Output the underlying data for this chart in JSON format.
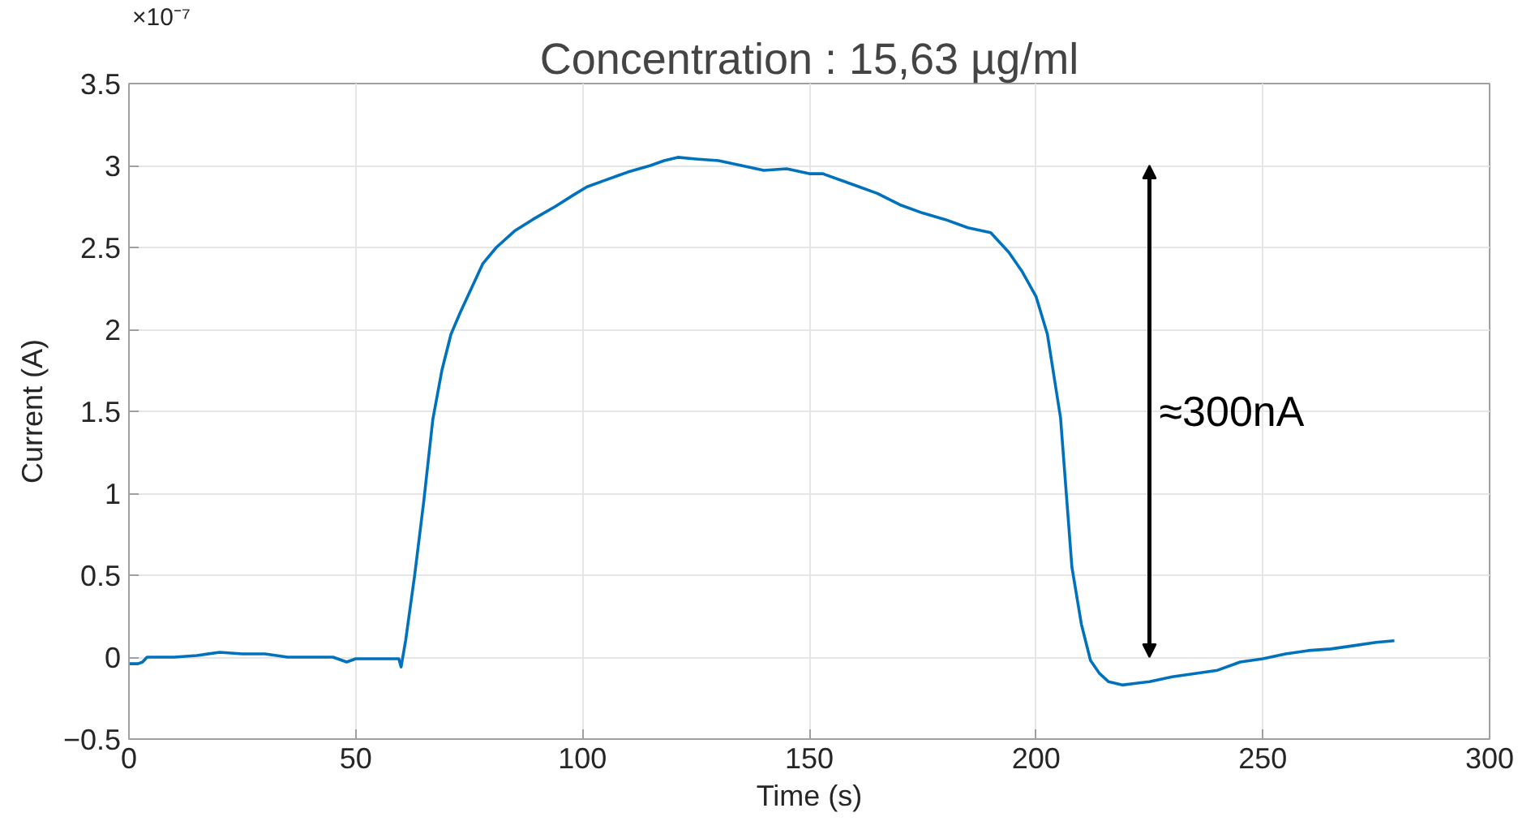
{
  "chart_data": {
    "type": "line",
    "title": "Concentration : 15,63 µg/ml",
    "xlabel": "Time (s)",
    "ylabel": "Current (A)",
    "xlim": [
      0,
      300
    ],
    "xticks": [
      0,
      50,
      100,
      150,
      200,
      250,
      300
    ],
    "ylim": [
      -0.5,
      3.5
    ],
    "yticks": [
      -0.5,
      0,
      0.5,
      1,
      1.5,
      2,
      2.5,
      3,
      3.5
    ],
    "grid": true,
    "marker": "none",
    "line_style": "solid",
    "annotations": [
      "×10⁻⁷",
      "≈300nA"
    ],
    "series": [
      {
        "color": "#0072bd",
        "x": [
          0,
          2,
          3,
          4,
          10,
          15,
          20,
          25,
          30,
          35,
          40,
          45,
          48,
          50,
          55,
          59.5,
          60,
          61,
          63,
          65,
          67,
          69,
          71,
          73,
          75,
          78,
          81,
          85,
          89,
          94,
          98,
          101,
          105,
          110,
          115,
          118,
          121,
          125,
          130,
          135,
          140,
          145,
          150,
          153,
          160,
          165,
          170,
          175,
          180,
          185,
          190,
          194,
          197,
          200,
          202.5,
          205.4,
          207.9,
          210,
          212,
          214,
          216,
          219,
          222,
          225,
          230,
          235,
          240,
          245,
          250,
          255,
          260,
          265,
          270,
          275,
          279
        ],
        "values": [
          -0.04,
          -0.04,
          -0.03,
          0.0,
          0.0,
          0.01,
          0.03,
          0.02,
          0.02,
          0.0,
          0.0,
          0.0,
          -0.03,
          -0.01,
          -0.01,
          -0.01,
          -0.06,
          0.1,
          0.5,
          0.95,
          1.45,
          1.75,
          1.97,
          2.1,
          2.22,
          2.4,
          2.5,
          2.6,
          2.67,
          2.75,
          2.82,
          2.87,
          2.91,
          2.96,
          3.0,
          3.03,
          3.05,
          3.04,
          3.03,
          3.0,
          2.97,
          2.98,
          2.95,
          2.95,
          2.88,
          2.83,
          2.76,
          2.71,
          2.67,
          2.62,
          2.59,
          2.47,
          2.35,
          2.2,
          1.97,
          1.46,
          0.55,
          0.2,
          -0.02,
          -0.1,
          -0.15,
          -0.17,
          -0.16,
          -0.15,
          -0.12,
          -0.1,
          -0.08,
          -0.03,
          -0.01,
          0.02,
          0.04,
          0.05,
          0.07,
          0.09,
          0.1
        ]
      }
    ]
  }
}
